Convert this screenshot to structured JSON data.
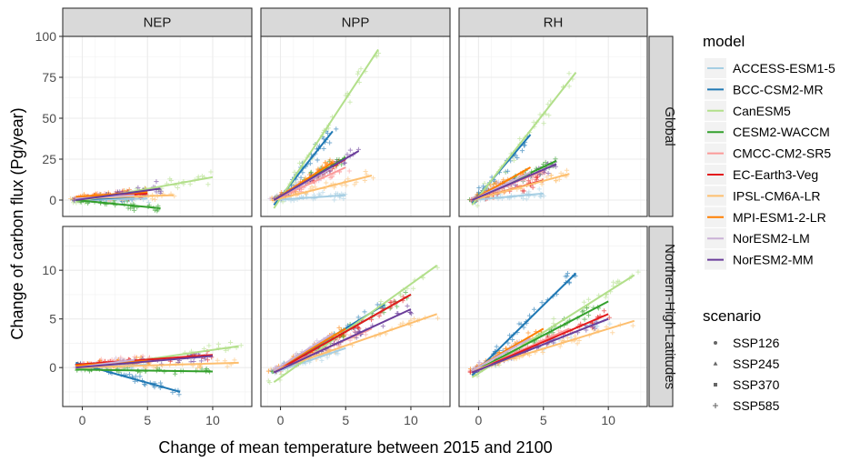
{
  "chart_data": {
    "type": "scatter",
    "xlabel": "Change of mean temperature between 2015 and 2100",
    "ylabel": "Change of carbon flux (Pg/year)",
    "columns": [
      "NEP",
      "NPP",
      "RH"
    ],
    "rows": [
      "Global",
      "Northern-High-Latitudes"
    ],
    "x_range": [
      -1.5,
      13
    ],
    "x_ticks": [
      0,
      5,
      10
    ],
    "y_ranges": {
      "Global": [
        -10,
        100
      ],
      "Northern-High-Latitudes": [
        -4,
        14.5
      ]
    },
    "y_ticks": {
      "Global": [
        0,
        25,
        50,
        75,
        100
      ],
      "Northern-High-Latitudes": [
        0,
        5,
        10
      ]
    },
    "legend_model_title": "model",
    "legend_scenario_title": "scenario",
    "models": [
      {
        "name": "ACCESS-ESM1-5",
        "color": "#A6CEE3"
      },
      {
        "name": "BCC-CSM2-MR",
        "color": "#1F78B4"
      },
      {
        "name": "CanESM5",
        "color": "#B2DF8A"
      },
      {
        "name": "CESM2-WACCM",
        "color": "#33A02C"
      },
      {
        "name": "CMCC-CM2-SR5",
        "color": "#FB9A99"
      },
      {
        "name": "EC-Earth3-Veg",
        "color": "#E31A1C"
      },
      {
        "name": "IPSL-CM6A-LR",
        "color": "#FDBF6F"
      },
      {
        "name": "MPI-ESM1-2-LR",
        "color": "#FF7F00"
      },
      {
        "name": "NorESM2-LM",
        "color": "#CAB2D6"
      },
      {
        "name": "NorESM2-MM",
        "color": "#6A3D9A"
      }
    ],
    "scenarios": [
      {
        "name": "SSP126",
        "shape": "circle"
      },
      {
        "name": "SSP245",
        "shape": "triangle"
      },
      {
        "name": "SSP370",
        "shape": "square"
      },
      {
        "name": "SSP585",
        "shape": "plus"
      }
    ],
    "regression_lines": {
      "Global": {
        "NEP": [
          {
            "model": "ACCESS-ESM1-5",
            "x": [
              -0.5,
              5
            ],
            "y": [
              0,
              1
            ]
          },
          {
            "model": "BCC-CSM2-MR",
            "x": [
              -0.5,
              4
            ],
            "y": [
              0,
              2
            ]
          },
          {
            "model": "CanESM5",
            "x": [
              -0.5,
              10
            ],
            "y": [
              -1,
              14
            ]
          },
          {
            "model": "CESM2-WACCM",
            "x": [
              -0.5,
              6
            ],
            "y": [
              0,
              -5
            ]
          },
          {
            "model": "CMCC-CM2-SR5",
            "x": [
              -0.5,
              5
            ],
            "y": [
              1,
              4
            ]
          },
          {
            "model": "EC-Earth3-Veg",
            "x": [
              -0.5,
              5
            ],
            "y": [
              1,
              4
            ]
          },
          {
            "model": "IPSL-CM6A-LR",
            "x": [
              -0.5,
              7
            ],
            "y": [
              1,
              3
            ]
          },
          {
            "model": "MPI-ESM1-2-LR",
            "x": [
              -0.5,
              5
            ],
            "y": [
              2,
              5
            ]
          },
          {
            "model": "NorESM2-LM",
            "x": [
              -0.5,
              4
            ],
            "y": [
              1,
              3
            ]
          },
          {
            "model": "NorESM2-MM",
            "x": [
              -0.5,
              6
            ],
            "y": [
              0,
              7
            ]
          }
        ],
        "NPP": [
          {
            "model": "ACCESS-ESM1-5",
            "x": [
              -0.5,
              5
            ],
            "y": [
              0,
              3
            ]
          },
          {
            "model": "BCC-CSM2-MR",
            "x": [
              -0.5,
              4
            ],
            "y": [
              -3,
              42
            ]
          },
          {
            "model": "CanESM5",
            "x": [
              -0.5,
              7.5
            ],
            "y": [
              -5,
              92
            ]
          },
          {
            "model": "CESM2-WACCM",
            "x": [
              -0.5,
              5
            ],
            "y": [
              0,
              26
            ]
          },
          {
            "model": "CMCC-CM2-SR5",
            "x": [
              -0.5,
              5
            ],
            "y": [
              0,
              20
            ]
          },
          {
            "model": "EC-Earth3-Veg",
            "x": [
              -0.5,
              5
            ],
            "y": [
              0,
              25
            ]
          },
          {
            "model": "IPSL-CM6A-LR",
            "x": [
              -0.5,
              7
            ],
            "y": [
              0,
              15
            ]
          },
          {
            "model": "MPI-ESM1-2-LR",
            "x": [
              -0.5,
              4
            ],
            "y": [
              0,
              23
            ]
          },
          {
            "model": "NorESM2-LM",
            "x": [
              -0.5,
              4
            ],
            "y": [
              0,
              20
            ]
          },
          {
            "model": "NorESM2-MM",
            "x": [
              -0.5,
              6
            ],
            "y": [
              0,
              30
            ]
          }
        ],
        "RH": [
          {
            "model": "ACCESS-ESM1-5",
            "x": [
              -0.5,
              5
            ],
            "y": [
              0,
              4
            ]
          },
          {
            "model": "BCC-CSM2-MR",
            "x": [
              -0.5,
              4
            ],
            "y": [
              -2,
              40
            ]
          },
          {
            "model": "CanESM5",
            "x": [
              -0.5,
              7.5
            ],
            "y": [
              -3,
              78
            ]
          },
          {
            "model": "CESM2-WACCM",
            "x": [
              -0.5,
              6
            ],
            "y": [
              0,
              24
            ]
          },
          {
            "model": "CMCC-CM2-SR5",
            "x": [
              -0.5,
              5
            ],
            "y": [
              0,
              18
            ]
          },
          {
            "model": "EC-Earth3-Veg",
            "x": [
              -0.5,
              5
            ],
            "y": [
              0,
              12
            ]
          },
          {
            "model": "IPSL-CM6A-LR",
            "x": [
              -0.5,
              7
            ],
            "y": [
              0,
              16
            ]
          },
          {
            "model": "MPI-ESM1-2-LR",
            "x": [
              -0.5,
              4
            ],
            "y": [
              0,
              20
            ]
          },
          {
            "model": "NorESM2-LM",
            "x": [
              -0.5,
              4
            ],
            "y": [
              0,
              17
            ]
          },
          {
            "model": "NorESM2-MM",
            "x": [
              -0.5,
              6
            ],
            "y": [
              0,
              22
            ]
          }
        ]
      },
      "Northern-High-Latitudes": {
        "NEP": [
          {
            "model": "ACCESS-ESM1-5",
            "x": [
              -0.5,
              5
            ],
            "y": [
              0,
              0.3
            ]
          },
          {
            "model": "BCC-CSM2-MR",
            "x": [
              -0.5,
              7.5
            ],
            "y": [
              0.5,
              -2.5
            ]
          },
          {
            "model": "CanESM5",
            "x": [
              -0.5,
              12
            ],
            "y": [
              -0.2,
              2.2
            ]
          },
          {
            "model": "CESM2-WACCM",
            "x": [
              -0.5,
              10
            ],
            "y": [
              -0.2,
              -0.4
            ]
          },
          {
            "model": "CMCC-CM2-SR5",
            "x": [
              -0.5,
              5
            ],
            "y": [
              0.3,
              0.8
            ]
          },
          {
            "model": "EC-Earth3-Veg",
            "x": [
              -0.5,
              10
            ],
            "y": [
              0.3,
              1.3
            ]
          },
          {
            "model": "IPSL-CM6A-LR",
            "x": [
              -0.5,
              12
            ],
            "y": [
              0,
              0.5
            ]
          },
          {
            "model": "MPI-ESM1-2-LR",
            "x": [
              -0.5,
              5
            ],
            "y": [
              0.2,
              0.7
            ]
          },
          {
            "model": "NorESM2-LM",
            "x": [
              -0.5,
              4
            ],
            "y": [
              0,
              0.8
            ]
          },
          {
            "model": "NorESM2-MM",
            "x": [
              -0.5,
              10
            ],
            "y": [
              0,
              1.2
            ]
          }
        ],
        "NPP": [
          {
            "model": "ACCESS-ESM1-5",
            "x": [
              -0.5,
              5
            ],
            "y": [
              -0.5,
              2
            ]
          },
          {
            "model": "BCC-CSM2-MR",
            "x": [
              -0.5,
              8
            ],
            "y": [
              -0.5,
              6.5
            ]
          },
          {
            "model": "CanESM5",
            "x": [
              -0.5,
              12
            ],
            "y": [
              -1.5,
              10.5
            ]
          },
          {
            "model": "CESM2-WACCM",
            "x": [
              -0.5,
              10
            ],
            "y": [
              -0.5,
              7.5
            ]
          },
          {
            "model": "CMCC-CM2-SR5",
            "x": [
              -0.5,
              7
            ],
            "y": [
              -0.3,
              4
            ]
          },
          {
            "model": "EC-Earth3-Veg",
            "x": [
              -0.5,
              10
            ],
            "y": [
              -0.5,
              7.5
            ]
          },
          {
            "model": "IPSL-CM6A-LR",
            "x": [
              -0.5,
              12
            ],
            "y": [
              -0.3,
              5.5
            ]
          },
          {
            "model": "MPI-ESM1-2-LR",
            "x": [
              -0.5,
              5
            ],
            "y": [
              -0.3,
              4
            ]
          },
          {
            "model": "NorESM2-LM",
            "x": [
              -0.5,
              4
            ],
            "y": [
              -0.3,
              3.5
            ]
          },
          {
            "model": "NorESM2-MM",
            "x": [
              -0.5,
              10
            ],
            "y": [
              -0.5,
              6
            ]
          }
        ],
        "RH": [
          {
            "model": "ACCESS-ESM1-5",
            "x": [
              -0.5,
              10
            ],
            "y": [
              -0.5,
              5
            ]
          },
          {
            "model": "BCC-CSM2-MR",
            "x": [
              -0.5,
              7.5
            ],
            "y": [
              -0.8,
              9.7
            ]
          },
          {
            "model": "CanESM5",
            "x": [
              -0.5,
              12
            ],
            "y": [
              -1,
              9.5
            ]
          },
          {
            "model": "CESM2-WACCM",
            "x": [
              -0.5,
              10
            ],
            "y": [
              -0.5,
              6.8
            ]
          },
          {
            "model": "CMCC-CM2-SR5",
            "x": [
              -0.5,
              7
            ],
            "y": [
              -0.5,
              4
            ]
          },
          {
            "model": "EC-Earth3-Veg",
            "x": [
              -0.5,
              10
            ],
            "y": [
              -0.5,
              5.5
            ]
          },
          {
            "model": "IPSL-CM6A-LR",
            "x": [
              -0.5,
              12
            ],
            "y": [
              -0.3,
              4.8
            ]
          },
          {
            "model": "MPI-ESM1-2-LR",
            "x": [
              -0.5,
              5
            ],
            "y": [
              -0.3,
              4
            ]
          },
          {
            "model": "NorESM2-LM",
            "x": [
              -0.5,
              4
            ],
            "y": [
              -0.3,
              3
            ]
          },
          {
            "model": "NorESM2-MM",
            "x": [
              -0.5,
              10
            ],
            "y": [
              -0.5,
              5
            ]
          }
        ]
      }
    }
  }
}
